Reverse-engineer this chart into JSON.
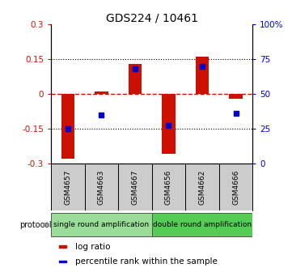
{
  "title": "GDS224 / 10461",
  "samples": [
    "GSM4657",
    "GSM4663",
    "GSM4667",
    "GSM4656",
    "GSM4662",
    "GSM4666"
  ],
  "log_ratio": [
    -0.28,
    0.01,
    0.13,
    -0.26,
    0.16,
    -0.02
  ],
  "percentile": [
    25,
    35,
    68,
    27,
    70,
    36
  ],
  "ylim_left": [
    -0.3,
    0.3
  ],
  "ylim_right": [
    0,
    100
  ],
  "bar_color": "#cc1100",
  "dot_color": "#0000cc",
  "zero_line_color": "#cc1100",
  "protocol_groups": [
    {
      "label": "single round amplification",
      "n_samples": 3,
      "color": "#99dd99"
    },
    {
      "label": "double round amplification",
      "n_samples": 3,
      "color": "#55cc55"
    }
  ],
  "protocol_label": "protocol",
  "legend_items": [
    {
      "label": "log ratio",
      "color": "#cc1100"
    },
    {
      "label": "percentile rank within the sample",
      "color": "#0000cc"
    }
  ],
  "left_ticks": [
    -0.3,
    -0.15,
    0,
    0.15,
    0.3
  ],
  "left_tick_labels": [
    "-0.3",
    "-0.15",
    "0",
    "0.15",
    "0.3"
  ],
  "right_ticks": [
    0,
    25,
    50,
    75,
    100
  ],
  "right_tick_labels": [
    "0",
    "25",
    "50",
    "75",
    "100%"
  ],
  "cell_bg": "#cccccc",
  "bar_width": 0.4,
  "dot_size": 4.5,
  "title_fontsize": 10,
  "tick_fontsize": 7.5,
  "sample_fontsize": 6.5,
  "proto_fontsize": 6.5,
  "legend_fontsize": 7.5
}
